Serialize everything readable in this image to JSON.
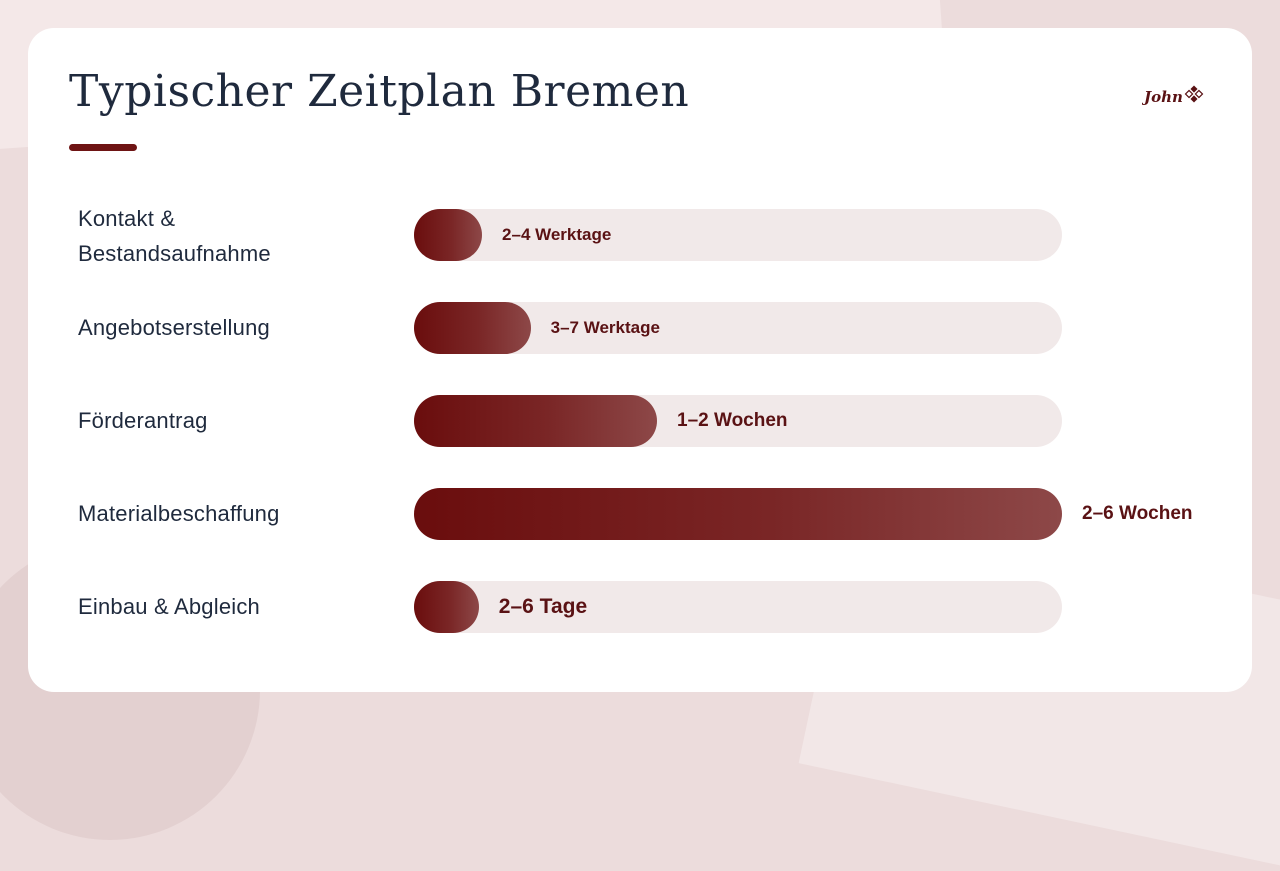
{
  "slide": {
    "title": "Typischer Zeitplan Bremen",
    "logo_text": "John",
    "colors": {
      "accent": "#6e1414",
      "bar_start": "#6a0d0d",
      "bar_end": "#8d4848",
      "track": "#f1e9e9",
      "title": "#1f2a3d"
    }
  },
  "chart_data": {
    "type": "bar",
    "orientation": "horizontal",
    "title": "Typischer Zeitplan Bremen",
    "xlabel": "",
    "ylabel": "",
    "categories": [
      "Kontakt & Bestandsaufnahme",
      "Angebotserstellung",
      "Förderantrag",
      "Materialbeschaffung",
      "Einbau & Abgleich"
    ],
    "value_labels": [
      "2–4 Werktage",
      "3–7 Werktage",
      "1–2 Wochen",
      "2–6 Wochen",
      "2–6 Tage"
    ],
    "values": [
      0.105,
      0.18,
      0.375,
      1.0,
      0.1
    ],
    "xlim": [
      0,
      1
    ],
    "grid": false,
    "legend": "none"
  }
}
